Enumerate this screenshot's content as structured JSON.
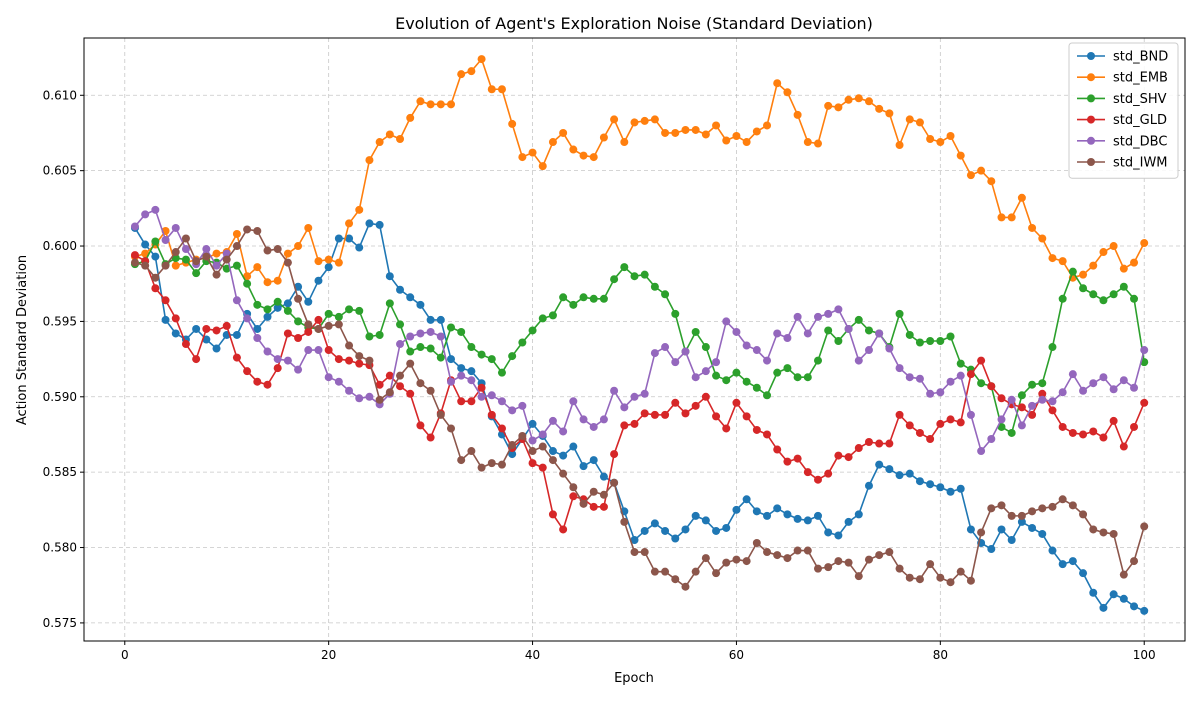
{
  "chart_data": {
    "type": "line",
    "title": "Evolution of Agent's Exploration Noise (Standard Deviation)",
    "xlabel": "Epoch",
    "ylabel": "Action Standard Deviation",
    "xlim": [
      -4,
      104
    ],
    "ylim": [
      0.5738,
      0.6138
    ],
    "xticks": [
      0,
      20,
      40,
      60,
      80,
      100
    ],
    "yticks": [
      0.575,
      0.58,
      0.585,
      0.59,
      0.595,
      0.6,
      0.605,
      0.61
    ],
    "grid": true,
    "legend_position": "top-right",
    "x": [
      1,
      2,
      3,
      4,
      5,
      6,
      7,
      8,
      9,
      10,
      11,
      12,
      13,
      14,
      15,
      16,
      17,
      18,
      19,
      20,
      21,
      22,
      23,
      24,
      25,
      26,
      27,
      28,
      29,
      30,
      31,
      32,
      33,
      34,
      35,
      36,
      37,
      38,
      39,
      40,
      41,
      42,
      43,
      44,
      45,
      46,
      47,
      48,
      49,
      50,
      51,
      52,
      53,
      54,
      55,
      56,
      57,
      58,
      59,
      60,
      61,
      62,
      63,
      64,
      65,
      66,
      67,
      68,
      69,
      70,
      71,
      72,
      73,
      74,
      75,
      76,
      77,
      78,
      79,
      80,
      81,
      82,
      83,
      84,
      85,
      86,
      87,
      88,
      89,
      90,
      91,
      92,
      93,
      94,
      95,
      96,
      97,
      98,
      99,
      100
    ],
    "series": [
      {
        "name": "std_BND",
        "color": "#1f77b4",
        "values": [
          0.6012,
          0.6001,
          0.5993,
          0.5951,
          0.5942,
          0.5938,
          0.5945,
          0.5938,
          0.5932,
          0.5941,
          0.5941,
          0.5955,
          0.5945,
          0.5953,
          0.5959,
          0.5962,
          0.5973,
          0.5963,
          0.5977,
          0.5986,
          0.6005,
          0.6005,
          0.5999,
          0.6015,
          0.6014,
          0.598,
          0.5971,
          0.5966,
          0.5961,
          0.5951,
          0.5951,
          0.5925,
          0.5919,
          0.5917,
          0.5909,
          0.5887,
          0.5875,
          0.5862,
          0.5872,
          0.5882,
          0.5874,
          0.5864,
          0.5861,
          0.5867,
          0.5854,
          0.5858,
          0.5847,
          0.5843,
          0.5824,
          0.5805,
          0.5811,
          0.5816,
          0.5811,
          0.5806,
          0.5812,
          0.5821,
          0.5818,
          0.5811,
          0.5813,
          0.5825,
          0.5832,
          0.5824,
          0.5821,
          0.5826,
          0.5822,
          0.5819,
          0.5818,
          0.5821,
          0.581,
          0.5808,
          0.5817,
          0.5822,
          0.5841,
          0.5855,
          0.5852,
          0.5848,
          0.5849,
          0.5844,
          0.5842,
          0.584,
          0.5837,
          0.5839,
          0.5812,
          0.5803,
          0.5799,
          0.5812,
          0.5805,
          0.5817,
          0.5813,
          0.5809,
          0.5798,
          0.5789,
          0.5791,
          0.5783,
          0.577,
          0.576,
          0.5769,
          0.5766,
          0.5761,
          0.5758
        ]
      },
      {
        "name": "std_EMB",
        "color": "#ff7f0e",
        "values": [
          0.5993,
          0.5995,
          0.6001,
          0.601,
          0.5987,
          0.5989,
          0.5991,
          0.5992,
          0.5995,
          0.5996,
          0.6008,
          0.598,
          0.5986,
          0.5976,
          0.5977,
          0.5995,
          0.6,
          0.6012,
          0.599,
          0.5991,
          0.5989,
          0.6015,
          0.6024,
          0.6057,
          0.6069,
          0.6074,
          0.6071,
          0.6085,
          0.6096,
          0.6094,
          0.6094,
          0.6094,
          0.6114,
          0.6116,
          0.6124,
          0.6104,
          0.6104,
          0.6081,
          0.6059,
          0.6062,
          0.6053,
          0.6069,
          0.6075,
          0.6064,
          0.606,
          0.6059,
          0.6072,
          0.6084,
          0.6069,
          0.6082,
          0.6083,
          0.6084,
          0.6075,
          0.6075,
          0.6077,
          0.6077,
          0.6074,
          0.608,
          0.607,
          0.6073,
          0.6069,
          0.6076,
          0.608,
          0.6108,
          0.6102,
          0.6087,
          0.6069,
          0.6068,
          0.6093,
          0.6092,
          0.6097,
          0.6098,
          0.6096,
          0.6091,
          0.6088,
          0.6067,
          0.6084,
          0.6082,
          0.6071,
          0.6069,
          0.6073,
          0.606,
          0.6047,
          0.605,
          0.6043,
          0.6019,
          0.6019,
          0.6032,
          0.6012,
          0.6005,
          0.5992,
          0.599,
          0.5979,
          0.5981,
          0.5987,
          0.5996,
          0.6,
          0.5985,
          0.5989,
          0.6002
        ]
      },
      {
        "name": "std_SHV",
        "color": "#2ca02c",
        "values": [
          0.5988,
          0.599,
          0.6003,
          0.5988,
          0.5992,
          0.5991,
          0.5982,
          0.599,
          0.5989,
          0.5985,
          0.5987,
          0.5975,
          0.5961,
          0.5958,
          0.5963,
          0.5957,
          0.595,
          0.5946,
          0.5945,
          0.5955,
          0.5953,
          0.5958,
          0.5957,
          0.594,
          0.5941,
          0.5962,
          0.5948,
          0.593,
          0.5933,
          0.5932,
          0.5926,
          0.5946,
          0.5943,
          0.5933,
          0.5928,
          0.5925,
          0.5916,
          0.5927,
          0.5936,
          0.5944,
          0.5952,
          0.5954,
          0.5966,
          0.5961,
          0.5966,
          0.5965,
          0.5965,
          0.5978,
          0.5986,
          0.598,
          0.5981,
          0.5973,
          0.5968,
          0.5955,
          0.593,
          0.5943,
          0.5933,
          0.5914,
          0.5911,
          0.5916,
          0.591,
          0.5906,
          0.5901,
          0.5916,
          0.5919,
          0.5913,
          0.5913,
          0.5924,
          0.5944,
          0.5937,
          0.5945,
          0.5951,
          0.5944,
          0.5942,
          0.5933,
          0.5955,
          0.5941,
          0.5936,
          0.5937,
          0.5937,
          0.594,
          0.5922,
          0.5918,
          0.5909,
          0.5907,
          0.588,
          0.5876,
          0.5901,
          0.5908,
          0.5909,
          0.5933,
          0.5965,
          0.5983,
          0.5972,
          0.5968,
          0.5964,
          0.5968,
          0.5973,
          0.5965,
          0.5923
        ]
      },
      {
        "name": "std_GLD",
        "color": "#d62728",
        "values": [
          0.5994,
          0.599,
          0.5972,
          0.5964,
          0.5952,
          0.5935,
          0.5925,
          0.5945,
          0.5944,
          0.5947,
          0.5926,
          0.5917,
          0.591,
          0.5908,
          0.5919,
          0.5942,
          0.5939,
          0.5943,
          0.5951,
          0.5931,
          0.5925,
          0.5924,
          0.5922,
          0.5921,
          0.5908,
          0.5914,
          0.5907,
          0.5902,
          0.5881,
          0.5873,
          0.5889,
          0.5911,
          0.5897,
          0.5897,
          0.5906,
          0.5888,
          0.5879,
          0.5866,
          0.5872,
          0.5856,
          0.5853,
          0.5822,
          0.5812,
          0.5834,
          0.5832,
          0.5827,
          0.5827,
          0.5862,
          0.5881,
          0.5882,
          0.5889,
          0.5888,
          0.5888,
          0.5896,
          0.5889,
          0.5894,
          0.59,
          0.5887,
          0.5879,
          0.5896,
          0.5887,
          0.5878,
          0.5875,
          0.5865,
          0.5857,
          0.5859,
          0.585,
          0.5845,
          0.5849,
          0.5861,
          0.586,
          0.5866,
          0.587,
          0.5869,
          0.5869,
          0.5888,
          0.5881,
          0.5876,
          0.5872,
          0.5882,
          0.5885,
          0.5883,
          0.5915,
          0.5924,
          0.5907,
          0.5899,
          0.5895,
          0.5893,
          0.5888,
          0.5902,
          0.5891,
          0.588,
          0.5876,
          0.5875,
          0.5877,
          0.5873,
          0.5884,
          0.5867,
          0.588,
          0.5896
        ]
      },
      {
        "name": "std_DBC",
        "color": "#9467bd",
        "values": [
          0.6013,
          0.6021,
          0.6024,
          0.6004,
          0.6012,
          0.5998,
          0.5988,
          0.5998,
          0.5987,
          0.5995,
          0.5964,
          0.5952,
          0.5939,
          0.593,
          0.5925,
          0.5924,
          0.5918,
          0.5931,
          0.5931,
          0.5913,
          0.591,
          0.5904,
          0.5899,
          0.59,
          0.5895,
          0.5902,
          0.5935,
          0.594,
          0.5942,
          0.5943,
          0.594,
          0.591,
          0.5914,
          0.5911,
          0.59,
          0.5901,
          0.5897,
          0.5891,
          0.5894,
          0.5871,
          0.5875,
          0.5884,
          0.5877,
          0.5897,
          0.5885,
          0.588,
          0.5885,
          0.5904,
          0.5893,
          0.59,
          0.5902,
          0.5929,
          0.5933,
          0.5923,
          0.593,
          0.5913,
          0.5917,
          0.5923,
          0.595,
          0.5943,
          0.5934,
          0.5931,
          0.5924,
          0.5942,
          0.5939,
          0.5953,
          0.5942,
          0.5953,
          0.5955,
          0.5958,
          0.5945,
          0.5924,
          0.5931,
          0.5942,
          0.5932,
          0.5919,
          0.5913,
          0.5912,
          0.5902,
          0.5903,
          0.591,
          0.5914,
          0.5888,
          0.5864,
          0.5872,
          0.5885,
          0.5898,
          0.5881,
          0.5894,
          0.5898,
          0.5897,
          0.5903,
          0.5915,
          0.5904,
          0.5909,
          0.5913,
          0.5905,
          0.5911,
          0.5906,
          0.5931
        ]
      },
      {
        "name": "std_IWM",
        "color": "#8c564b",
        "values": [
          0.5989,
          0.5987,
          0.5979,
          0.5987,
          0.5996,
          0.6005,
          0.599,
          0.5993,
          0.5981,
          0.5991,
          0.6,
          0.6011,
          0.601,
          0.5997,
          0.5998,
          0.5989,
          0.5965,
          0.5948,
          0.5945,
          0.5947,
          0.5948,
          0.5934,
          0.5927,
          0.5924,
          0.5898,
          0.5903,
          0.5914,
          0.5922,
          0.5909,
          0.5904,
          0.5888,
          0.5879,
          0.5858,
          0.5864,
          0.5853,
          0.5856,
          0.5855,
          0.5868,
          0.5874,
          0.5864,
          0.5867,
          0.5858,
          0.5849,
          0.584,
          0.5829,
          0.5837,
          0.5835,
          0.5843,
          0.5817,
          0.5797,
          0.5797,
          0.5784,
          0.5784,
          0.5779,
          0.5774,
          0.5784,
          0.5793,
          0.5783,
          0.579,
          0.5792,
          0.5791,
          0.5803,
          0.5797,
          0.5795,
          0.5793,
          0.5798,
          0.5798,
          0.5786,
          0.5787,
          0.5791,
          0.579,
          0.5781,
          0.5792,
          0.5795,
          0.5797,
          0.5786,
          0.578,
          0.5779,
          0.5789,
          0.578,
          0.5777,
          0.5784,
          0.5778,
          0.581,
          0.5826,
          0.5828,
          0.5821,
          0.5821,
          0.5824,
          0.5826,
          0.5827,
          0.5832,
          0.5828,
          0.5822,
          0.5812,
          0.581,
          0.5809,
          0.5782,
          0.5791,
          0.5814
        ]
      }
    ]
  }
}
